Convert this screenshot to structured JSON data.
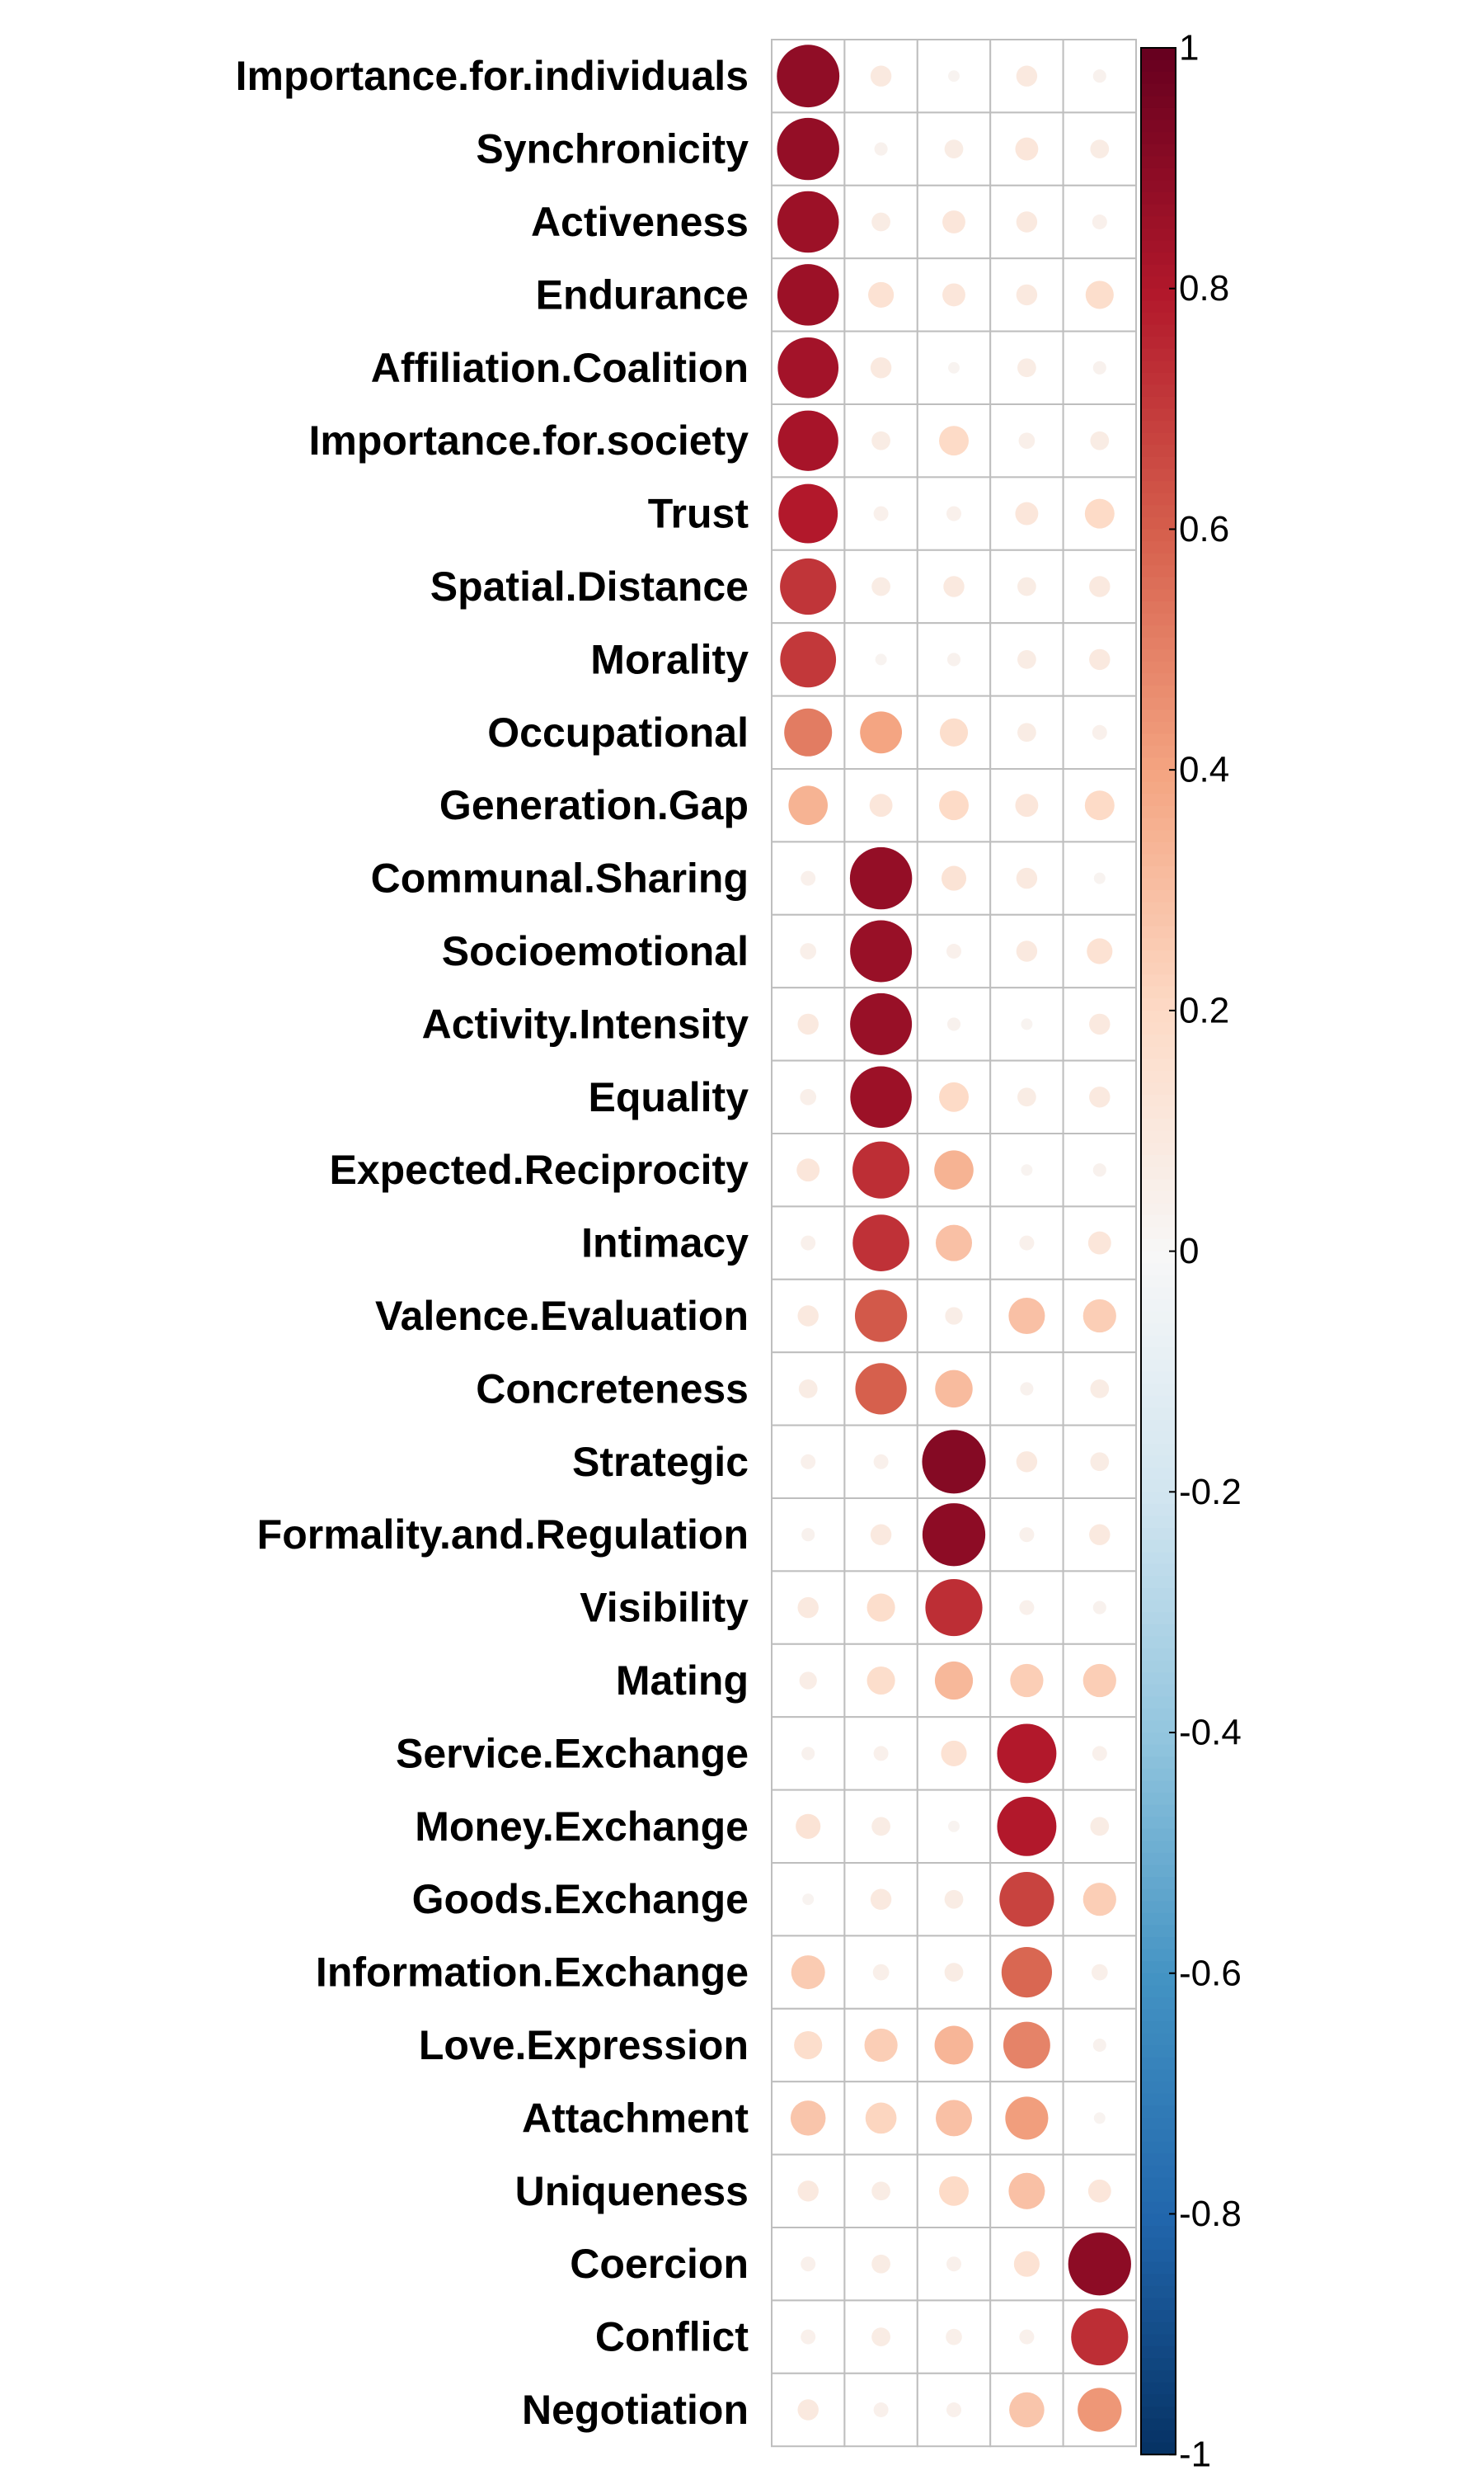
{
  "chart_data": {
    "type": "heatmap",
    "rows": [
      "Importance.for.individuals",
      "Synchronicity",
      "Activeness",
      "Endurance",
      "Affiliation.Coalition",
      "Importance.for.society",
      "Trust",
      "Spatial.Distance",
      "Morality",
      "Occupational",
      "Generation.Gap",
      "Communal.Sharing",
      "Socioemotional",
      "Activity.Intensity",
      "Equality",
      "Expected.Reciprocity",
      "Intimacy",
      "Valence.Evaluation",
      "Concreteness",
      "Strategic",
      "Formality.and.Regulation",
      "Visibility",
      "Mating",
      "Service.Exchange",
      "Money.Exchange",
      "Goods.Exchange",
      "Information.Exchange",
      "Love.Expression",
      "Attachment",
      "Uniqueness",
      "Coercion",
      "Conflict",
      "Negotiation"
    ],
    "columns": [
      "",
      "",
      "",
      "",
      ""
    ],
    "values": [
      [
        0.89,
        0.1,
        0.03,
        0.1,
        0.04
      ],
      [
        0.88,
        0.04,
        0.08,
        0.12,
        0.08
      ],
      [
        0.86,
        0.08,
        0.12,
        0.1,
        0.05
      ],
      [
        0.86,
        0.15,
        0.12,
        0.1,
        0.18
      ],
      [
        0.84,
        0.1,
        0.03,
        0.08,
        0.04
      ],
      [
        0.83,
        0.08,
        0.2,
        0.06,
        0.08
      ],
      [
        0.8,
        0.05,
        0.05,
        0.12,
        0.2
      ],
      [
        0.72,
        0.08,
        0.1,
        0.08,
        0.1
      ],
      [
        0.71,
        0.03,
        0.04,
        0.08,
        0.1
      ],
      [
        0.52,
        0.4,
        0.18,
        0.08,
        0.05
      ],
      [
        0.35,
        0.12,
        0.2,
        0.12,
        0.2
      ],
      [
        0.05,
        0.88,
        0.14,
        0.1,
        0.03
      ],
      [
        0.06,
        0.87,
        0.05,
        0.1,
        0.15
      ],
      [
        0.1,
        0.87,
        0.04,
        0.03,
        0.1
      ],
      [
        0.06,
        0.86,
        0.2,
        0.08,
        0.1
      ],
      [
        0.12,
        0.74,
        0.35,
        0.03,
        0.04
      ],
      [
        0.05,
        0.73,
        0.3,
        0.05,
        0.12
      ],
      [
        0.1,
        0.62,
        0.07,
        0.3,
        0.25
      ],
      [
        0.08,
        0.6,
        0.32,
        0.04,
        0.08
      ],
      [
        0.05,
        0.05,
        0.92,
        0.1,
        0.08
      ],
      [
        0.04,
        0.1,
        0.9,
        0.05,
        0.1
      ],
      [
        0.1,
        0.18,
        0.74,
        0.05,
        0.04
      ],
      [
        0.07,
        0.18,
        0.33,
        0.25,
        0.25
      ],
      [
        0.04,
        0.05,
        0.15,
        0.8,
        0.05
      ],
      [
        0.14,
        0.08,
        0.03,
        0.8,
        0.08
      ],
      [
        0.03,
        0.1,
        0.08,
        0.68,
        0.25
      ],
      [
        0.26,
        0.06,
        0.08,
        0.58,
        0.06
      ],
      [
        0.18,
        0.25,
        0.34,
        0.5,
        0.04
      ],
      [
        0.28,
        0.22,
        0.3,
        0.42,
        0.03
      ],
      [
        0.1,
        0.08,
        0.2,
        0.3,
        0.12
      ],
      [
        0.05,
        0.08,
        0.05,
        0.15,
        0.9
      ],
      [
        0.05,
        0.08,
        0.06,
        0.05,
        0.74
      ],
      [
        0.1,
        0.05,
        0.05,
        0.28,
        0.44
      ]
    ],
    "color_scale": {
      "type": "RdBu",
      "min": -1,
      "max": 1,
      "stops": [
        {
          "value": -1.0,
          "color": "#053061"
        },
        {
          "value": -0.8,
          "color": "#2166AC"
        },
        {
          "value": -0.6,
          "color": "#4393C3"
        },
        {
          "value": -0.4,
          "color": "#92C5DE"
        },
        {
          "value": -0.2,
          "color": "#D1E5F0"
        },
        {
          "value": 0.0,
          "color": "#F7F7F7"
        },
        {
          "value": 0.2,
          "color": "#FDDBC7"
        },
        {
          "value": 0.4,
          "color": "#F4A582"
        },
        {
          "value": 0.6,
          "color": "#D6604D"
        },
        {
          "value": 0.8,
          "color": "#B2182B"
        },
        {
          "value": 1.0,
          "color": "#67001F"
        }
      ]
    },
    "colorbar_ticks": [
      "1",
      "0.8",
      "0.6",
      "0.4",
      "0.2",
      "0",
      "-0.2",
      "-0.4",
      "-0.6",
      "-0.8",
      "-1"
    ],
    "grid": true,
    "grid_color": "#BEBEBE",
    "legend_position": "right",
    "title": "",
    "xlabel": "",
    "ylabel": ""
  }
}
